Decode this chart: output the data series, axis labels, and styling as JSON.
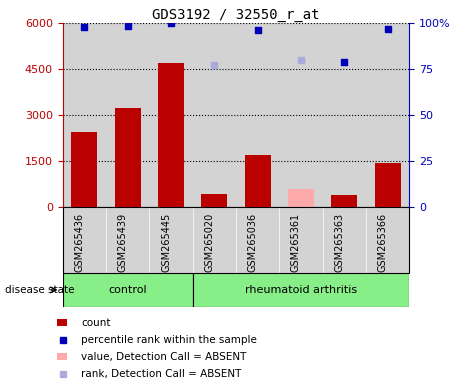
{
  "title": "GDS3192 / 32550_r_at",
  "samples": [
    "GSM265436",
    "GSM265439",
    "GSM265445",
    "GSM265020",
    "GSM265036",
    "GSM265361",
    "GSM265363",
    "GSM265366"
  ],
  "groups": [
    "control",
    "control",
    "control",
    "rheumatoid arthritis",
    "rheumatoid arthritis",
    "rheumatoid arthritis",
    "rheumatoid arthritis",
    "rheumatoid arthritis"
  ],
  "count_values": [
    2450,
    3250,
    4700,
    450,
    1700,
    null,
    400,
    1450
  ],
  "count_absent_values": [
    null,
    null,
    null,
    null,
    null,
    600,
    null,
    null
  ],
  "percentile_values": [
    98,
    98.5,
    100,
    null,
    96,
    null,
    79,
    97
  ],
  "percentile_absent_values": [
    null,
    null,
    null,
    77,
    null,
    80,
    null,
    null
  ],
  "ylim_left": [
    0,
    6000
  ],
  "ylim_right": [
    0,
    100
  ],
  "yticks_left": [
    0,
    1500,
    3000,
    4500,
    6000
  ],
  "yticks_right": [
    0,
    25,
    50,
    75,
    100
  ],
  "bar_color": "#bb0000",
  "bar_absent_color": "#ffaaaa",
  "scatter_color": "#0000bb",
  "scatter_absent_color": "#aaaadd",
  "group_control_color": "#88ee88",
  "group_ra_color": "#88ee88",
  "sample_bg_color": "#d3d3d3",
  "white_bg": "#ffffff",
  "legend_labels": [
    "count",
    "percentile rank within the sample",
    "value, Detection Call = ABSENT",
    "rank, Detection Call = ABSENT"
  ]
}
